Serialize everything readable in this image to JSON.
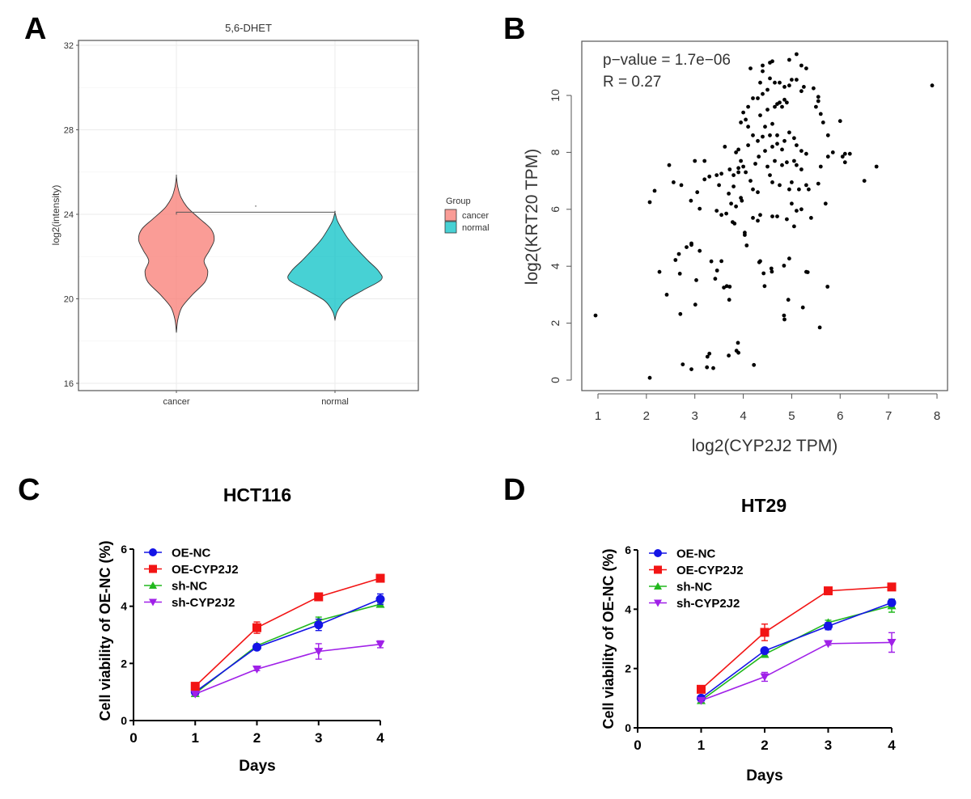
{
  "panels": {
    "A": {
      "letter": "A"
    },
    "B": {
      "letter": "B"
    },
    "C": {
      "letter": "C"
    },
    "D": {
      "letter": "D"
    }
  },
  "chart_data": [
    {
      "id": "A",
      "type": "violin",
      "title": "5,6-DHET",
      "xlabel": "",
      "ylabel": "log2(intensity)",
      "ylim": [
        15.8,
        32.4
      ],
      "yticks": [
        16,
        20,
        24,
        28,
        32
      ],
      "categories": [
        "cancer",
        "normal"
      ],
      "grid": true,
      "legend": {
        "title": "Group",
        "position": "right",
        "entries": [
          {
            "label": "cancer",
            "color": "#F8766D"
          },
          {
            "label": "normal",
            "color": "#00BFC4"
          }
        ]
      },
      "significance": {
        "label": ".",
        "from": "cancer",
        "to": "normal",
        "y": 24.1
      },
      "violins": [
        {
          "category": "cancer",
          "color": "#F8766D",
          "min": 18.4,
          "max": 25.8,
          "density": [
            [
              18.4,
              0.0
            ],
            [
              19.0,
              0.03
            ],
            [
              19.6,
              0.12
            ],
            [
              20.2,
              0.35
            ],
            [
              20.8,
              0.62
            ],
            [
              21.3,
              0.68
            ],
            [
              21.8,
              0.6
            ],
            [
              22.3,
              0.72
            ],
            [
              22.8,
              0.82
            ],
            [
              23.3,
              0.75
            ],
            [
              23.8,
              0.5
            ],
            [
              24.3,
              0.25
            ],
            [
              24.8,
              0.1
            ],
            [
              25.3,
              0.03
            ],
            [
              25.8,
              0.0
            ]
          ]
        },
        {
          "category": "normal",
          "color": "#00BFC4",
          "min": 19.0,
          "max": 24.1,
          "density": [
            [
              19.0,
              0.0
            ],
            [
              19.4,
              0.05
            ],
            [
              19.9,
              0.22
            ],
            [
              20.4,
              0.6
            ],
            [
              20.9,
              1.0
            ],
            [
              21.3,
              0.95
            ],
            [
              21.8,
              0.72
            ],
            [
              22.3,
              0.5
            ],
            [
              22.8,
              0.3
            ],
            [
              23.3,
              0.15
            ],
            [
              23.7,
              0.05
            ],
            [
              24.1,
              0.0
            ]
          ]
        }
      ]
    },
    {
      "id": "B",
      "type": "scatter",
      "title": "",
      "xlabel": "log2(CYP2J2 TPM)",
      "ylabel": "log2(KRT20 TPM)",
      "xlim": [
        0.7,
        8.3
      ],
      "ylim": [
        -0.35,
        11.9
      ],
      "xticks": [
        1,
        2,
        3,
        4,
        5,
        6,
        7,
        8
      ],
      "yticks": [
        0,
        2,
        4,
        6,
        8,
        10
      ],
      "annotations": [
        "p−value = 1.7e−06",
        "R = 0.27"
      ],
      "points": [
        [
          0.95,
          2.27
        ],
        [
          2.07,
          0.08
        ],
        [
          2.75,
          0.55
        ],
        [
          2.93,
          0.38
        ],
        [
          3.25,
          0.45
        ],
        [
          3.38,
          0.42
        ],
        [
          3.26,
          0.82
        ],
        [
          3.3,
          0.93
        ],
        [
          3.7,
          0.86
        ],
        [
          3.86,
          1.03
        ],
        [
          3.9,
          0.96
        ],
        [
          3.89,
          1.31
        ],
        [
          4.22,
          0.53
        ],
        [
          2.27,
          3.8
        ],
        [
          2.42,
          3.0
        ],
        [
          2.6,
          4.22
        ],
        [
          2.67,
          4.43
        ],
        [
          2.69,
          3.74
        ],
        [
          2.7,
          2.32
        ],
        [
          2.83,
          4.67
        ],
        [
          2.93,
          4.75
        ],
        [
          2.93,
          4.8
        ],
        [
          3.01,
          2.65
        ],
        [
          3.03,
          3.51
        ],
        [
          3.1,
          4.54
        ],
        [
          3.34,
          4.17
        ],
        [
          3.42,
          3.56
        ],
        [
          3.46,
          3.85
        ],
        [
          3.55,
          4.18
        ],
        [
          3.6,
          3.25
        ],
        [
          3.66,
          3.3
        ],
        [
          3.72,
          3.28
        ],
        [
          3.71,
          2.82
        ],
        [
          4.03,
          5.18
        ],
        [
          4.07,
          4.73
        ],
        [
          4.33,
          4.14
        ],
        [
          4.35,
          4.18
        ],
        [
          4.42,
          3.75
        ],
        [
          4.44,
          3.3
        ],
        [
          4.58,
          3.92
        ],
        [
          4.59,
          3.81
        ],
        [
          4.84,
          4.02
        ],
        [
          4.84,
          2.27
        ],
        [
          4.85,
          2.13
        ],
        [
          4.93,
          2.82
        ],
        [
          4.95,
          4.27
        ],
        [
          5.23,
          2.55
        ],
        [
          5.33,
          3.79
        ],
        [
          5.58,
          1.85
        ],
        [
          5.74,
          3.28
        ],
        [
          2.07,
          6.25
        ],
        [
          2.17,
          6.65
        ],
        [
          2.47,
          7.55
        ],
        [
          2.56,
          6.95
        ],
        [
          2.72,
          6.85
        ],
        [
          3.0,
          7.7
        ],
        [
          3.2,
          7.7
        ],
        [
          2.92,
          6.3
        ],
        [
          3.05,
          6.6
        ],
        [
          3.1,
          6.02
        ],
        [
          3.2,
          7.05
        ],
        [
          3.3,
          7.15
        ],
        [
          3.45,
          7.2
        ],
        [
          3.55,
          7.25
        ],
        [
          3.5,
          6.85
        ],
        [
          3.45,
          5.95
        ],
        [
          3.55,
          5.8
        ],
        [
          3.65,
          5.85
        ],
        [
          3.7,
          6.55
        ],
        [
          3.75,
          6.2
        ],
        [
          3.8,
          6.8
        ],
        [
          3.9,
          7.3
        ],
        [
          3.78,
          5.55
        ],
        [
          3.82,
          5.5
        ],
        [
          3.85,
          6.1
        ],
        [
          3.95,
          6.4
        ],
        [
          3.97,
          6.3
        ],
        [
          4.03,
          5.1
        ],
        [
          3.62,
          8.2
        ],
        [
          3.72,
          7.4
        ],
        [
          3.8,
          7.2
        ],
        [
          3.9,
          7.45
        ],
        [
          3.85,
          8.0
        ],
        [
          3.9,
          8.1
        ],
        [
          3.95,
          7.7
        ],
        [
          4.0,
          7.5
        ],
        [
          4.05,
          7.3
        ],
        [
          4.1,
          8.25
        ],
        [
          4.15,
          7.0
        ],
        [
          4.2,
          6.7
        ],
        [
          4.3,
          6.6
        ],
        [
          4.25,
          7.6
        ],
        [
          4.32,
          7.85
        ],
        [
          4.4,
          8.55
        ],
        [
          4.45,
          8.05
        ],
        [
          4.5,
          7.5
        ],
        [
          4.55,
          7.2
        ],
        [
          4.6,
          6.95
        ],
        [
          4.65,
          7.7
        ],
        [
          4.7,
          8.3
        ],
        [
          4.75,
          6.85
        ],
        [
          4.8,
          7.55
        ],
        [
          4.9,
          7.65
        ],
        [
          4.95,
          6.7
        ],
        [
          5.0,
          6.95
        ],
        [
          5.05,
          7.7
        ],
        [
          5.1,
          7.55
        ],
        [
          5.15,
          6.7
        ],
        [
          5.2,
          7.4
        ],
        [
          5.3,
          6.85
        ],
        [
          4.85,
          8.4
        ],
        [
          4.95,
          8.7
        ],
        [
          5.05,
          8.5
        ],
        [
          5.1,
          8.25
        ],
        [
          5.2,
          8.05
        ],
        [
          5.3,
          7.95
        ],
        [
          4.55,
          8.6
        ],
        [
          4.6,
          8.2
        ],
        [
          4.7,
          8.6
        ],
        [
          4.8,
          8.1
        ],
        [
          4.3,
          8.4
        ],
        [
          4.2,
          8.6
        ],
        [
          4.1,
          8.9
        ],
        [
          4.05,
          9.15
        ],
        [
          3.95,
          9.05
        ],
        [
          4.0,
          9.4
        ],
        [
          4.1,
          9.6
        ],
        [
          4.2,
          9.9
        ],
        [
          4.3,
          9.9
        ],
        [
          4.4,
          10.05
        ],
        [
          4.5,
          10.2
        ],
        [
          4.35,
          9.3
        ],
        [
          4.45,
          8.9
        ],
        [
          4.6,
          9.0
        ],
        [
          4.5,
          9.5
        ],
        [
          4.65,
          9.6
        ],
        [
          4.7,
          9.7
        ],
        [
          4.75,
          9.75
        ],
        [
          4.8,
          9.6
        ],
        [
          4.85,
          9.85
        ],
        [
          4.9,
          9.75
        ],
        [
          4.95,
          10.35
        ],
        [
          5.0,
          10.55
        ],
        [
          5.1,
          10.55
        ],
        [
          5.2,
          10.15
        ],
        [
          5.25,
          10.3
        ],
        [
          4.85,
          10.3
        ],
        [
          4.75,
          10.45
        ],
        [
          4.65,
          10.45
        ],
        [
          4.55,
          10.6
        ],
        [
          4.35,
          10.45
        ],
        [
          4.4,
          11.05
        ],
        [
          4.55,
          11.15
        ],
        [
          4.6,
          11.2
        ],
        [
          4.95,
          11.25
        ],
        [
          5.1,
          11.45
        ],
        [
          5.2,
          11.05
        ],
        [
          4.15,
          10.95
        ],
        [
          4.4,
          10.85
        ],
        [
          5.3,
          10.95
        ],
        [
          5.45,
          10.25
        ],
        [
          5.55,
          9.95
        ],
        [
          5.55,
          9.8
        ],
        [
          5.5,
          9.6
        ],
        [
          5.65,
          9.05
        ],
        [
          5.6,
          9.35
        ],
        [
          5.75,
          8.6
        ],
        [
          5.85,
          8.0
        ],
        [
          5.75,
          7.85
        ],
        [
          5.6,
          7.5
        ],
        [
          6.05,
          7.85
        ],
        [
          6.1,
          7.95
        ],
        [
          6.2,
          7.95
        ],
        [
          6.1,
          7.65
        ],
        [
          6.5,
          7.0
        ],
        [
          5.55,
          6.9
        ],
        [
          5.35,
          6.7
        ],
        [
          5.0,
          6.2
        ],
        [
          5.1,
          5.95
        ],
        [
          5.2,
          6.0
        ],
        [
          5.4,
          5.7
        ],
        [
          6.0,
          9.1
        ],
        [
          5.7,
          6.2
        ],
        [
          6.75,
          7.5
        ],
        [
          7.9,
          10.35
        ],
        [
          5.3,
          3.8
        ],
        [
          5.05,
          5.4
        ],
        [
          4.6,
          5.75
        ],
        [
          4.35,
          5.8
        ],
        [
          4.3,
          5.6
        ],
        [
          4.2,
          5.7
        ],
        [
          4.7,
          5.75
        ],
        [
          4.9,
          5.65
        ]
      ]
    },
    {
      "id": "C",
      "type": "line",
      "title": "HCT116",
      "xlabel": "Days",
      "ylabel": "Cell viability of OE-NC (%)",
      "xlim": [
        0,
        4
      ],
      "ylim": [
        0,
        6
      ],
      "xticks": [
        0,
        1,
        2,
        3,
        4
      ],
      "yticks": [
        0,
        2,
        4,
        6
      ],
      "x": [
        1,
        2,
        3,
        4
      ],
      "legend_position": "top-left",
      "series": [
        {
          "name": "OE-NC",
          "color": "#1414E6",
          "marker": "circle",
          "values": [
            1.0,
            2.57,
            3.35,
            4.25
          ],
          "errors": [
            0.06,
            0.08,
            0.2,
            0.18
          ]
        },
        {
          "name": "OE-CYP2J2",
          "color": "#F21414",
          "marker": "square",
          "values": [
            1.2,
            3.25,
            4.33,
            4.98
          ],
          "errors": [
            0.05,
            0.2,
            0.1,
            0.06
          ]
        },
        {
          "name": "sh-NC",
          "color": "#22B81E",
          "marker": "triangle-up",
          "values": [
            0.95,
            2.62,
            3.5,
            4.07
          ],
          "errors": [
            0.04,
            0.06,
            0.12,
            0.06
          ]
        },
        {
          "name": "sh-CYP2J2",
          "color": "#A020E8",
          "marker": "triangle-down",
          "values": [
            0.93,
            1.8,
            2.42,
            2.67
          ],
          "errors": [
            0.04,
            0.05,
            0.27,
            0.12
          ]
        }
      ]
    },
    {
      "id": "D",
      "type": "line",
      "title": "HT29",
      "xlabel": "Days",
      "ylabel": "Cell viability of OE-NC (%)",
      "xlim": [
        0,
        4
      ],
      "ylim": [
        0,
        6
      ],
      "xticks": [
        0,
        1,
        2,
        3,
        4
      ],
      "yticks": [
        0,
        2,
        4,
        6
      ],
      "x": [
        1,
        2,
        3,
        4
      ],
      "legend_position": "top-left",
      "series": [
        {
          "name": "OE-NC",
          "color": "#1414E6",
          "marker": "circle",
          "values": [
            1.0,
            2.6,
            3.43,
            4.22
          ],
          "errors": [
            0.05,
            0.06,
            0.12,
            0.1
          ]
        },
        {
          "name": "OE-CYP2J2",
          "color": "#F21414",
          "marker": "square",
          "values": [
            1.3,
            3.22,
            4.62,
            4.75
          ],
          "errors": [
            0.04,
            0.28,
            0.04,
            0.04
          ]
        },
        {
          "name": "sh-NC",
          "color": "#22B81E",
          "marker": "triangle-up",
          "values": [
            0.92,
            2.48,
            3.55,
            4.12
          ],
          "errors": [
            0.04,
            0.06,
            0.08,
            0.22
          ]
        },
        {
          "name": "sh-CYP2J2",
          "color": "#A020E8",
          "marker": "triangle-down",
          "values": [
            0.92,
            1.72,
            2.84,
            2.88
          ],
          "errors": [
            0.04,
            0.15,
            0.05,
            0.33
          ]
        }
      ]
    }
  ]
}
